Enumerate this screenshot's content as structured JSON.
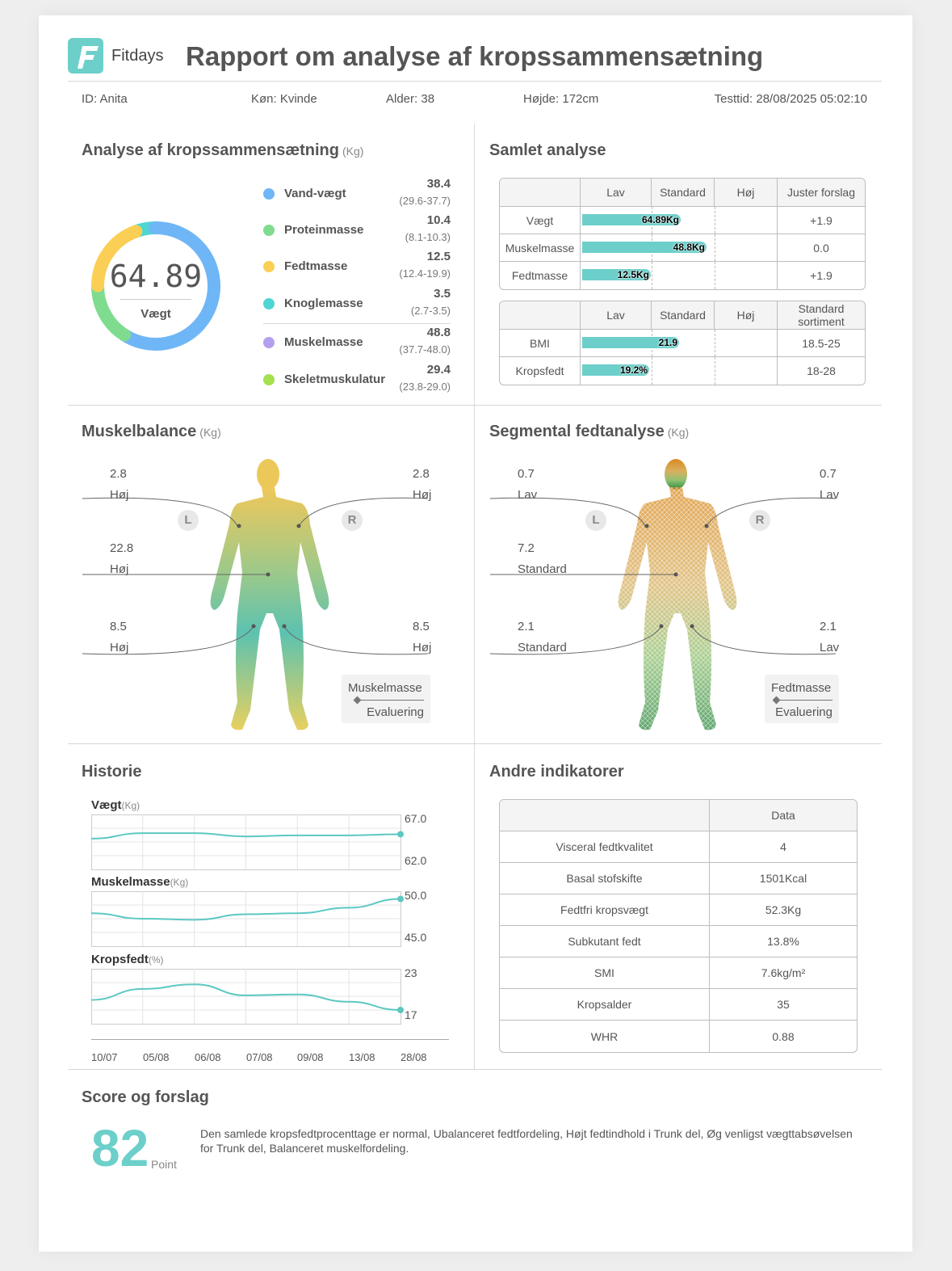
{
  "header": {
    "brand": "Fitdays",
    "title": "Rapport om analyse af kropssammensætning",
    "id": "ID: Anita",
    "gender": "Køn: Kvinde",
    "age": "Alder: 38",
    "height": "Højde: 172cm",
    "test_time": "Testtid: 28/08/2025 05:02:10"
  },
  "composition": {
    "title": "Analyse af kropssammensætning",
    "unit": "(Kg)",
    "donut_value": "64.89",
    "donut_label": "Vægt",
    "items": [
      {
        "label": "Vand-vægt",
        "value": "38.4",
        "range": "(29.6-37.7)",
        "color": "#6fb6f6"
      },
      {
        "label": "Proteinmasse",
        "value": "10.4",
        "range": "(8.1-10.3)",
        "color": "#7fdc8f"
      },
      {
        "label": "Fedtmasse",
        "value": "12.5",
        "range": "(12.4-19.9)",
        "color": "#fbcf55"
      },
      {
        "label": "Knoglemasse",
        "value": "3.5",
        "range": "(2.7-3.5)",
        "color": "#4fd5d2"
      },
      {
        "label": "Muskelmasse",
        "value": "48.8",
        "range": "(37.7-48.0)",
        "color": "#b4a0ee"
      },
      {
        "label": "Skeletmuskulatur",
        "value": "29.4",
        "range": "(23.8-29.0)",
        "color": "#a4e04f"
      }
    ]
  },
  "overall": {
    "title": "Samlet analyse",
    "table1": {
      "headers": [
        "",
        "Lav",
        "Standard",
        "Høj",
        "Juster forslag"
      ],
      "rows": [
        {
          "label": "Vægt",
          "bar_text": "64.89Kg",
          "level": 0.5,
          "suggest": "+1.9"
        },
        {
          "label": "Muskelmasse",
          "bar_text": "48.8Kg",
          "level": 0.63,
          "suggest": "0.0"
        },
        {
          "label": "Fedtmasse",
          "bar_text": "12.5Kg",
          "level": 0.35,
          "suggest": "+1.9"
        }
      ]
    },
    "table2": {
      "headers": [
        "",
        "Lav",
        "Standard",
        "Høj",
        "Standard sortiment"
      ],
      "rows": [
        {
          "label": "BMI",
          "bar_text": "21.9",
          "level": 0.49,
          "suggest": "18.5-25"
        },
        {
          "label": "Kropsfedt",
          "bar_text": "19.2%",
          "level": 0.34,
          "suggest": "18-28"
        }
      ]
    }
  },
  "muscle": {
    "title": "Muskelbalance",
    "unit": "(Kg)",
    "left_label": "L",
    "right_label": "R",
    "left_arm": {
      "value": "2.8",
      "eval": "Høj"
    },
    "right_arm": {
      "value": "2.8",
      "eval": "Høj"
    },
    "trunk": {
      "value": "22.8",
      "eval": "Høj"
    },
    "left_leg": {
      "value": "8.5",
      "eval": "Høj"
    },
    "right_leg": {
      "value": "8.5",
      "eval": "Høj"
    },
    "legend_top": "Muskelmasse",
    "legend_bottom": "Evaluering"
  },
  "fat": {
    "title": "Segmental fedtanalyse",
    "unit": "(Kg)",
    "left_label": "L",
    "right_label": "R",
    "left_arm": {
      "value": "0.7",
      "eval": "Lav"
    },
    "right_arm": {
      "value": "0.7",
      "eval": "Lav"
    },
    "trunk": {
      "value": "7.2",
      "eval": "Standard"
    },
    "left_leg": {
      "value": "2.1",
      "eval": "Standard"
    },
    "right_leg": {
      "value": "2.1",
      "eval": "Lav"
    },
    "legend_top": "Fedtmasse",
    "legend_bottom": "Evaluering"
  },
  "history": {
    "title": "Historie",
    "dates": [
      "10/07",
      "05/08",
      "06/08",
      "07/08",
      "09/08",
      "13/08",
      "28/08"
    ],
    "charts": [
      {
        "name": "Vægt",
        "unit": "(Kg)",
        "max": "67.0",
        "min": "62.0",
        "ymax": 67,
        "ymin": 62,
        "values": [
          64.8,
          65.3,
          65.3,
          65.0,
          65.1,
          65.1,
          65.2
        ]
      },
      {
        "name": "Muskelmasse",
        "unit": "(Kg)",
        "max": "50.0",
        "min": "45.0",
        "ymax": 50,
        "ymin": 45,
        "values": [
          48.0,
          47.5,
          47.4,
          47.9,
          48.0,
          48.5,
          49.3
        ]
      },
      {
        "name": "Kropsfedt",
        "unit": "(%)",
        "max": "23",
        "min": "17",
        "ymax": 23,
        "ymin": 17,
        "values": [
          19.6,
          20.8,
          21.3,
          20.1,
          20.2,
          19.4,
          18.5
        ]
      }
    ]
  },
  "indicators": {
    "title": "Andre indikatorer",
    "header": "Data",
    "rows": [
      {
        "label": "Visceral fedtkvalitet",
        "value": "4"
      },
      {
        "label": "Basal stofskifte",
        "value": "1501Kcal"
      },
      {
        "label": "Fedtfri kropsvægt",
        "value": "52.3Kg"
      },
      {
        "label": "Subkutant fedt",
        "value": "13.8%"
      },
      {
        "label": "SMI",
        "value": "7.6kg/m²"
      },
      {
        "label": "Kropsalder",
        "value": "35"
      },
      {
        "label": "WHR",
        "value": "0.88"
      }
    ]
  },
  "score": {
    "title": "Score og forslag",
    "value": "82",
    "unit": "Point",
    "text": "Den samlede kropsfedtprocenttage er normal, Ubalanceret fedtfordeling, Højt fedtindhold i Trunk del, Øg venligst vægttabsøvelsen for Trunk del, Balanceret muskelfordeling."
  }
}
